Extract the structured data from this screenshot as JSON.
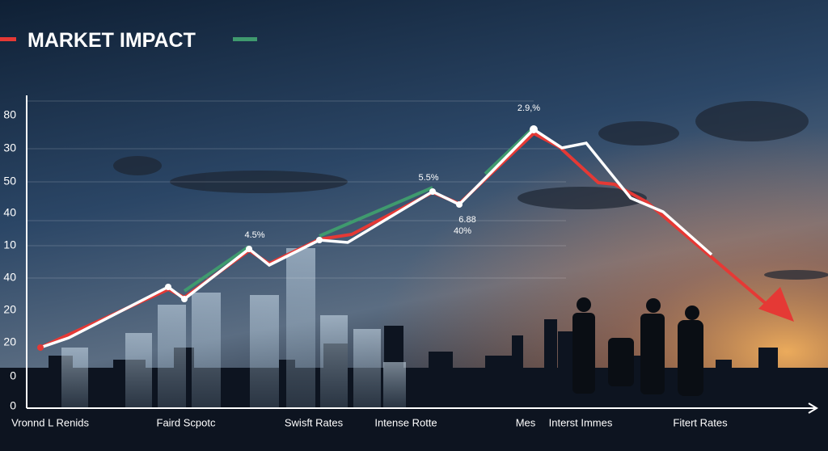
{
  "title": "MARKET IMPACT",
  "y_axis_labels": [
    "80",
    "30",
    "50",
    "40",
    "10",
    "40",
    "20",
    "20",
    "0",
    "0"
  ],
  "x_axis_labels": [
    "Vronnd L Renids",
    "Faird Scpotc",
    "Swisft Rates",
    "Intense Rotte",
    "Mes",
    "Interst Immes",
    "Fitert Rates"
  ],
  "annotations": [
    "4.5%",
    "5.5%",
    "2.9,%",
    "6.88",
    "40%"
  ]
}
